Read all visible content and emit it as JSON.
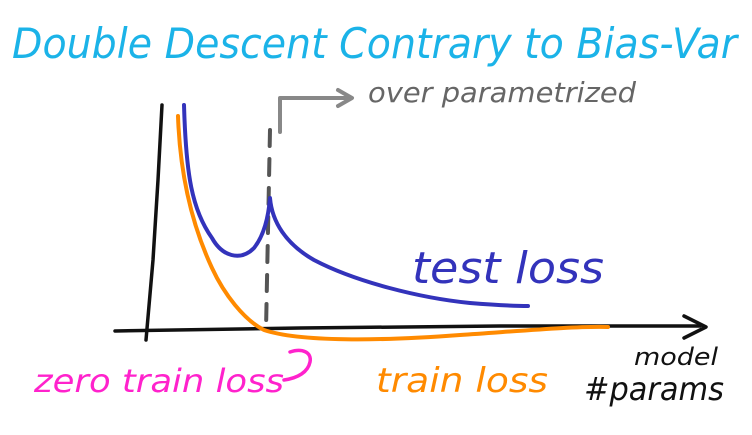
{
  "title": "Double Descent Contrary to Bias-Var",
  "annotations": {
    "over_parametrized": "over parametrized",
    "test_loss": "test loss",
    "train_loss": "train loss",
    "zero_train_loss": "zero train loss",
    "x_axis_label_line1": "model",
    "x_axis_label_line2": "#params"
  },
  "colors": {
    "title": "#1bb3e8",
    "test_loss": "#3333bb",
    "train_loss": "#ff8a00",
    "zero_train_loss": "#ff22cc",
    "axes": "#111111",
    "threshold": "#555555",
    "arrow": "#888888"
  }
}
